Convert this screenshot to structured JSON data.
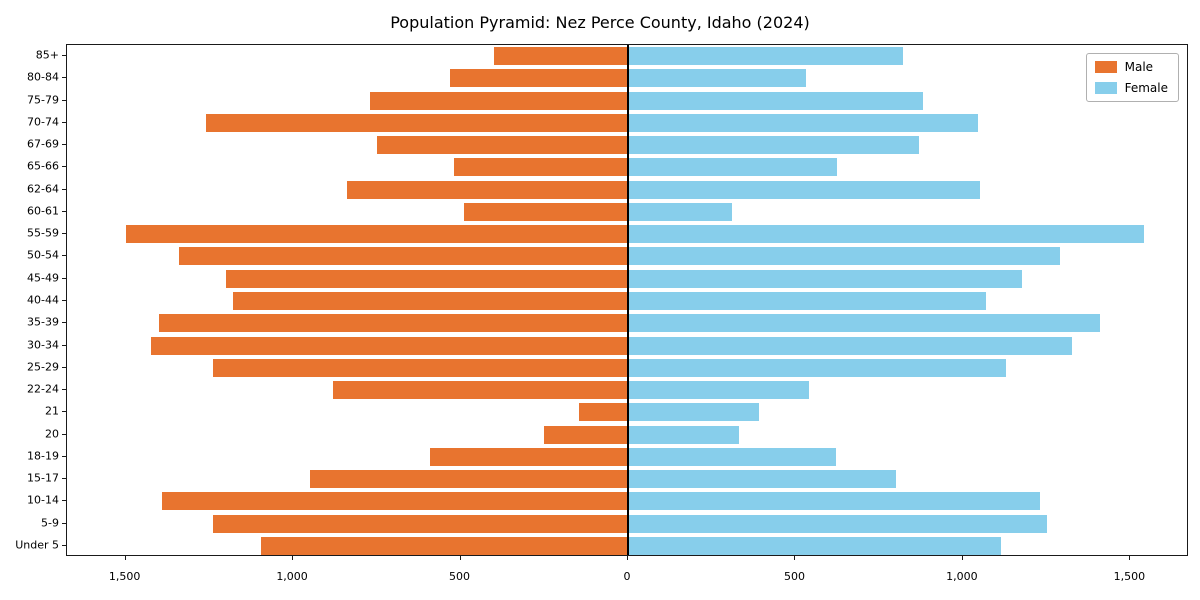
{
  "title": "Population Pyramid: Nez Perce County, Idaho (2024)",
  "legend": {
    "male_label": "Male",
    "female_label": "Female"
  },
  "colors": {
    "male": "#E8742F",
    "female": "#87CEEB",
    "axis": "#1a1a1a",
    "background": "#ffffff"
  },
  "chart_data": {
    "type": "bar",
    "subtype": "population-pyramid",
    "title": "Population Pyramid: Nez Perce County, Idaho (2024)",
    "grid": false,
    "legend_position": "upper right",
    "categories": [
      "85+",
      "80-84",
      "75-79",
      "70-74",
      "67-69",
      "65-66",
      "62-64",
      "60-61",
      "55-59",
      "50-54",
      "45-49",
      "40-44",
      "35-39",
      "30-34",
      "25-29",
      "22-24",
      "21",
      "20",
      "18-19",
      "15-17",
      "10-14",
      "5-9",
      "Under 5"
    ],
    "series": [
      {
        "name": "Male",
        "side": "left",
        "color": "#E8742F",
        "values": [
          400,
          530,
          770,
          1260,
          750,
          520,
          840,
          490,
          1500,
          1340,
          1200,
          1180,
          1400,
          1425,
          1240,
          880,
          145,
          250,
          590,
          950,
          1390,
          1240,
          1095
        ]
      },
      {
        "name": "Female",
        "side": "right",
        "color": "#87CEEB",
        "values": [
          820,
          530,
          880,
          1045,
          870,
          625,
          1050,
          310,
          1540,
          1290,
          1175,
          1070,
          1410,
          1325,
          1130,
          540,
          390,
          330,
          620,
          800,
          1230,
          1250,
          1115
        ]
      }
    ],
    "xlim": [
      -1675,
      1675
    ],
    "xticks": [
      -1500,
      -1000,
      -500,
      0,
      500,
      1000,
      1500
    ],
    "xtick_labels": [
      "1,500",
      "1,000",
      "500",
      "0",
      "500",
      "1,000",
      "1,500"
    ]
  }
}
